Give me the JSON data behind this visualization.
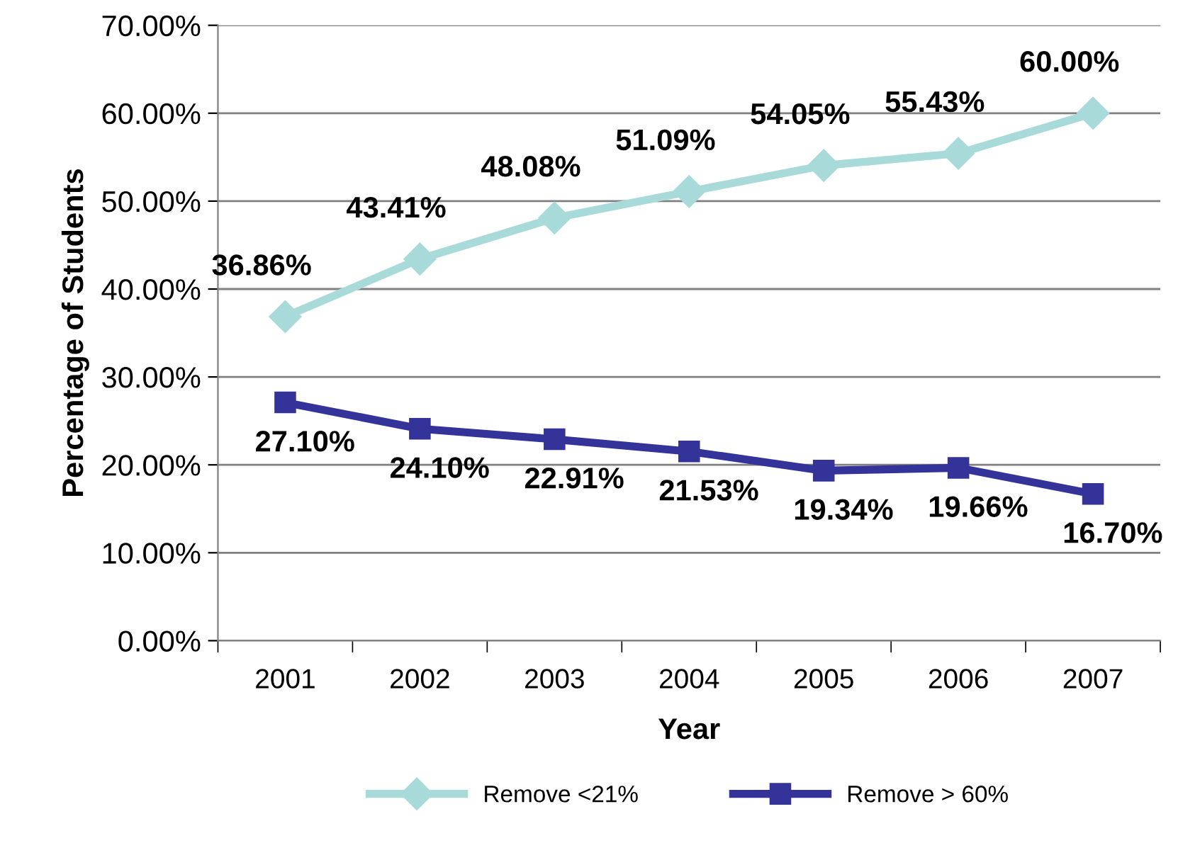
{
  "chart_data": {
    "type": "line",
    "xlabel": "Year",
    "ylabel": "Percentage of Students",
    "categories": [
      "2001",
      "2002",
      "2003",
      "2004",
      "2005",
      "2006",
      "2007"
    ],
    "series": [
      {
        "name": "Remove <21%",
        "color": "#a9dada",
        "marker": "diamond",
        "values": [
          36.86,
          43.41,
          48.08,
          51.09,
          54.05,
          55.43,
          60.0
        ],
        "value_labels": [
          "36.86%",
          "43.41%",
          "48.08%",
          "51.09%",
          "54.05%",
          "55.43%",
          "60.00%"
        ]
      },
      {
        "name": "Remove > 60%",
        "color": "#333399",
        "marker": "square",
        "values": [
          27.1,
          24.1,
          22.91,
          21.53,
          19.34,
          19.66,
          16.7
        ],
        "value_labels": [
          "27.10%",
          "24.10%",
          "22.91%",
          "21.53%",
          "19.34%",
          "19.66%",
          "16.70%"
        ]
      }
    ],
    "ylim": [
      0,
      70
    ],
    "yticks": [
      {
        "value": 0,
        "label": "0.00%"
      },
      {
        "value": 10,
        "label": "10.00%"
      },
      {
        "value": 20,
        "label": "20.00%"
      },
      {
        "value": 30,
        "label": "30.00%"
      },
      {
        "value": 40,
        "label": "40.00%"
      },
      {
        "value": 50,
        "label": "50.00%"
      },
      {
        "value": 60,
        "label": "60.00%"
      },
      {
        "value": 70,
        "label": "70.00%"
      }
    ],
    "grid": "y",
    "legend": "bottom",
    "line_style": "solid"
  }
}
